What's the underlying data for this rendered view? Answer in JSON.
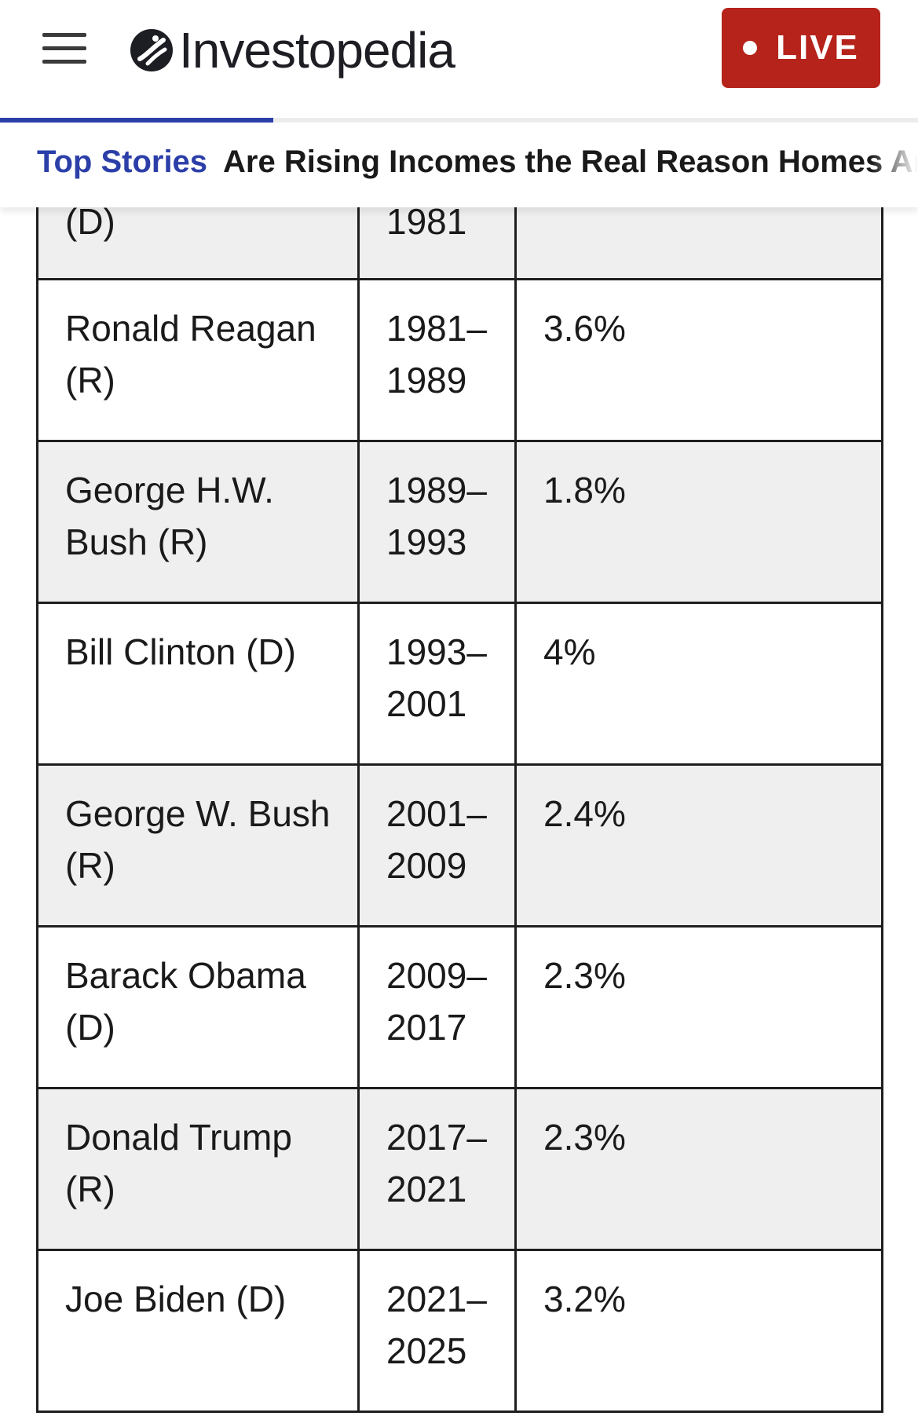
{
  "header": {
    "menu_icon": "hamburger-menu-icon",
    "logo_icon": "investopedia-logo-icon",
    "logo_text": "Investopedia",
    "live_label": "LIVE",
    "live_color": "#b5231a",
    "accent_color": "#2c3fa8"
  },
  "top_stories": {
    "label": "Top Stories",
    "headline": "Are Rising Incomes the Real Reason Homes Are"
  },
  "table": {
    "rows": [
      {
        "president": "(D)",
        "term": "1981",
        "value": ""
      },
      {
        "president": "Ronald Reagan (R)",
        "term": "1981–1989",
        "value": "3.6%"
      },
      {
        "president": "George H.W. Bush (R)",
        "term": "1989–1993",
        "value": "1.8%"
      },
      {
        "president": "Bill Clinton (D)",
        "term": "1993–2001",
        "value": "4%"
      },
      {
        "president": "George W. Bush (R)",
        "term": "2001–2009",
        "value": "2.4%"
      },
      {
        "president": "Barack Obama (D)",
        "term": "2009–2017",
        "value": "2.3%"
      },
      {
        "president": "Donald Trump (R)",
        "term": "2017–2021",
        "value": "2.3%"
      },
      {
        "president": "Joe Biden (D)",
        "term": "2021–2025",
        "value": "3.2%"
      }
    ]
  }
}
